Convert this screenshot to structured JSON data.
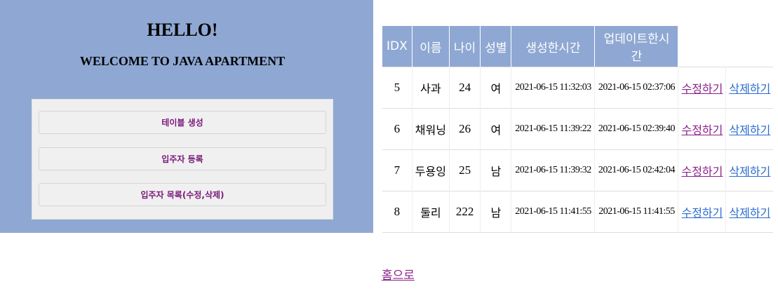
{
  "header": {
    "hello": "HELLO!",
    "welcome": "WELCOME TO JAVA APARTMENT"
  },
  "menu": {
    "create_table": "테이블 생성",
    "register_resident": "입주자 등록",
    "resident_list": "입주자 목록(수정,삭제)"
  },
  "table": {
    "headers": [
      "IDX",
      "이름",
      "나이",
      "성별",
      "생성한시간",
      "업데이트한시간",
      ""
    ],
    "rows": [
      {
        "idx": "5",
        "name": "사과",
        "age": "24",
        "gender": "여",
        "created": "2021-06-15 11:32:03",
        "updated": "2021-06-15 02:37:06",
        "edit": "수정하기",
        "delete": "삭제하기"
      },
      {
        "idx": "6",
        "name": "채워닝",
        "age": "26",
        "gender": "여",
        "created": "2021-06-15 11:39:22",
        "updated": "2021-06-15 02:39:40",
        "edit": "수정하기",
        "delete": "삭제하기"
      },
      {
        "idx": "7",
        "name": "두용잉",
        "age": "25",
        "gender": "남",
        "created": "2021-06-15 11:39:32",
        "updated": "2021-06-15 02:42:04",
        "edit": "수정하기",
        "delete": "삭제하기"
      },
      {
        "idx": "8",
        "name": "둘리",
        "age": "222",
        "gender": "남",
        "created": "2021-06-15 11:41:55",
        "updated": "2021-06-15 11:41:55",
        "edit": "수정하기",
        "delete": "삭제하기"
      }
    ]
  },
  "footer": {
    "home": "홈으로"
  },
  "colors": {
    "panel": "#8fa8d3",
    "visited_link": "#8a1f8a",
    "link": "#2a6bd1"
  }
}
